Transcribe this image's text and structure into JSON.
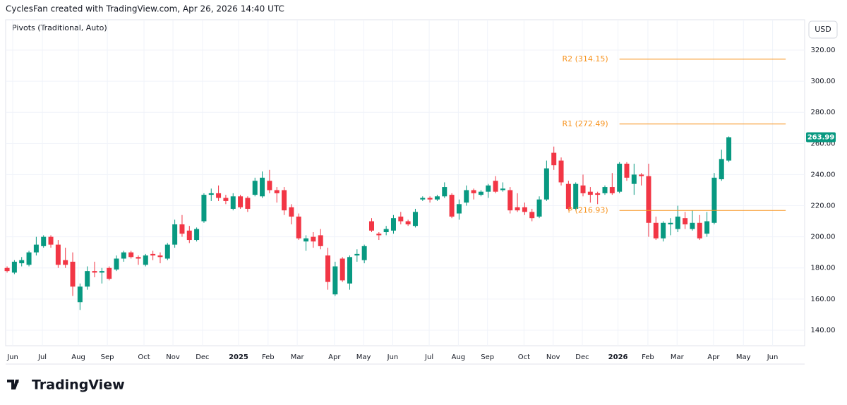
{
  "header": {
    "text": "CyclesFan created with TradingView.com, Apr 26, 2026 14:40 UTC"
  },
  "brand": "TradingView",
  "chart_data": {
    "type": "candlestick",
    "indicator": "Pivots (Traditional, Auto)",
    "currency": "USD",
    "up_color": "#089981",
    "down_color": "#f23645",
    "grid": true,
    "ylim": [
      130,
      339.5
    ],
    "yticks": [
      {
        "value": 140,
        "label": "140.00"
      },
      {
        "value": 160,
        "label": "160.00"
      },
      {
        "value": 180,
        "label": "180.00"
      },
      {
        "value": 200,
        "label": "200.00"
      },
      {
        "value": 220,
        "label": "220.00"
      },
      {
        "value": 240,
        "label": "240.00"
      },
      {
        "value": 260,
        "label": "260.00"
      },
      {
        "value": 280,
        "label": "280.00"
      },
      {
        "value": 300,
        "label": "300.00"
      },
      {
        "value": 320,
        "label": "320.00"
      }
    ],
    "xlim": [
      -0.2,
      109.4
    ],
    "xticks": [
      {
        "value": 0.77,
        "label": "Jun"
      },
      {
        "value": 4.84,
        "label": "Jul"
      },
      {
        "value": 9.78,
        "label": "Aug"
      },
      {
        "value": 13.75,
        "label": "Sep"
      },
      {
        "value": 18.78,
        "label": "Oct"
      },
      {
        "value": 22.75,
        "label": "Nov"
      },
      {
        "value": 26.8,
        "label": "Dec"
      },
      {
        "value": 31.75,
        "label": "2025"
      },
      {
        "value": 35.8,
        "label": "Feb"
      },
      {
        "value": 39.8,
        "label": "Mar"
      },
      {
        "value": 44.9,
        "label": "Apr"
      },
      {
        "value": 48.9,
        "label": "May"
      },
      {
        "value": 52.9,
        "label": "Jun"
      },
      {
        "value": 57.9,
        "label": "Jul"
      },
      {
        "value": 61.9,
        "label": "Aug"
      },
      {
        "value": 65.9,
        "label": "Sep"
      },
      {
        "value": 70.9,
        "label": "Oct"
      },
      {
        "value": 74.9,
        "label": "Nov"
      },
      {
        "value": 78.9,
        "label": "Dec"
      },
      {
        "value": 83.8,
        "label": "2026"
      },
      {
        "value": 87.9,
        "label": "Feb"
      },
      {
        "value": 91.9,
        "label": "Mar"
      },
      {
        "value": 96.9,
        "label": "Apr"
      },
      {
        "value": 101,
        "label": "May"
      },
      {
        "value": 105,
        "label": "Jun"
      }
    ],
    "open": [
      180,
      177,
      183,
      182,
      190,
      194,
      200,
      195,
      185,
      184,
      158,
      168,
      178,
      177,
      180,
      179,
      186,
      190,
      187,
      182,
      189,
      188,
      186,
      195,
      208,
      204,
      198,
      210,
      227,
      228,
      225,
      218,
      226,
      225,
      227,
      226,
      236,
      230,
      230,
      219,
      213,
      197,
      200,
      201,
      188,
      163,
      186,
      170,
      188,
      185,
      210,
      202,
      203,
      204,
      213,
      210,
      207,
      224,
      225,
      224,
      226,
      227,
      215,
      222,
      230,
      227,
      229,
      236,
      230,
      230,
      219,
      219,
      216,
      213,
      224,
      254,
      249,
      234,
      218,
      233,
      229,
      228,
      228,
      232,
      229,
      247,
      234,
      240,
      239,
      209,
      199,
      208,
      205,
      212,
      205,
      209,
      202,
      209,
      237,
      249
    ],
    "high": [
      181,
      185,
      187,
      191,
      200,
      201,
      201,
      198,
      193,
      190,
      170,
      181,
      184,
      180,
      181,
      188,
      191,
      191,
      188,
      189,
      191,
      190,
      196,
      211,
      214,
      207,
      206,
      228,
      231,
      233,
      227,
      228,
      227,
      226,
      238,
      242,
      243,
      232,
      232,
      221,
      215,
      201,
      203,
      205,
      193,
      184,
      187,
      188,
      192,
      195,
      212,
      203,
      207,
      214,
      216,
      211,
      218,
      226,
      226,
      227,
      235,
      228,
      224,
      233,
      231,
      230,
      234,
      239,
      235,
      232,
      228,
      222,
      218,
      226,
      249,
      258,
      251,
      236,
      235,
      240,
      232,
      229,
      233,
      241,
      248,
      248,
      247,
      241,
      247,
      213,
      210,
      212,
      220,
      216,
      217,
      214,
      216,
      241,
      256,
      264.5
    ],
    "low": [
      177,
      176,
      181,
      181,
      188,
      193,
      193,
      180,
      180,
      162,
      153,
      166,
      174,
      170,
      172,
      178,
      184,
      186,
      182,
      181,
      185,
      183,
      185,
      193,
      200,
      196,
      197,
      209,
      223,
      223,
      221,
      217,
      218,
      216,
      226,
      225,
      228,
      222,
      214,
      208,
      198,
      191,
      193,
      192,
      166,
      162,
      171,
      166,
      184,
      183,
      203,
      198,
      201,
      202,
      208,
      207,
      206,
      223,
      222,
      223,
      225,
      212,
      211,
      220,
      224,
      226,
      225,
      228,
      229,
      215,
      216,
      214,
      210,
      212,
      223,
      243,
      233,
      217,
      217,
      226,
      222,
      221,
      227,
      227,
      228,
      236,
      227,
      233,
      200,
      198,
      197,
      201,
      203,
      205,
      204,
      198,
      200,
      208,
      236,
      248
    ],
    "close": [
      178,
      184,
      185,
      190,
      195,
      200,
      195,
      182,
      182,
      168,
      168,
      178,
      177,
      178,
      173,
      186,
      190,
      187,
      186,
      188,
      188,
      187,
      195,
      208,
      202,
      198,
      205,
      227,
      228,
      225,
      223,
      226,
      219,
      218,
      236,
      238,
      230,
      228,
      217,
      213,
      199,
      199,
      197,
      194,
      171,
      181,
      172,
      187,
      189,
      194,
      204,
      201,
      205,
      212,
      210,
      208,
      216,
      225,
      224,
      226,
      232,
      213,
      221,
      230,
      228,
      229,
      233,
      229,
      231,
      217,
      217,
      216,
      212,
      224,
      244,
      246,
      235,
      218,
      234,
      228,
      227,
      227,
      232,
      228,
      247,
      238,
      240,
      239,
      209,
      199,
      209,
      209,
      213,
      208,
      209,
      199,
      210,
      238,
      250,
      263.99
    ],
    "pivots": {
      "color": "#f7931e",
      "levels": [
        {
          "label": "R2 (314.15)",
          "value": 314.15
        },
        {
          "label": "R1 (272.49)",
          "value": 272.49
        },
        {
          "label": "P (216.93)",
          "value": 216.93
        }
      ]
    }
  }
}
